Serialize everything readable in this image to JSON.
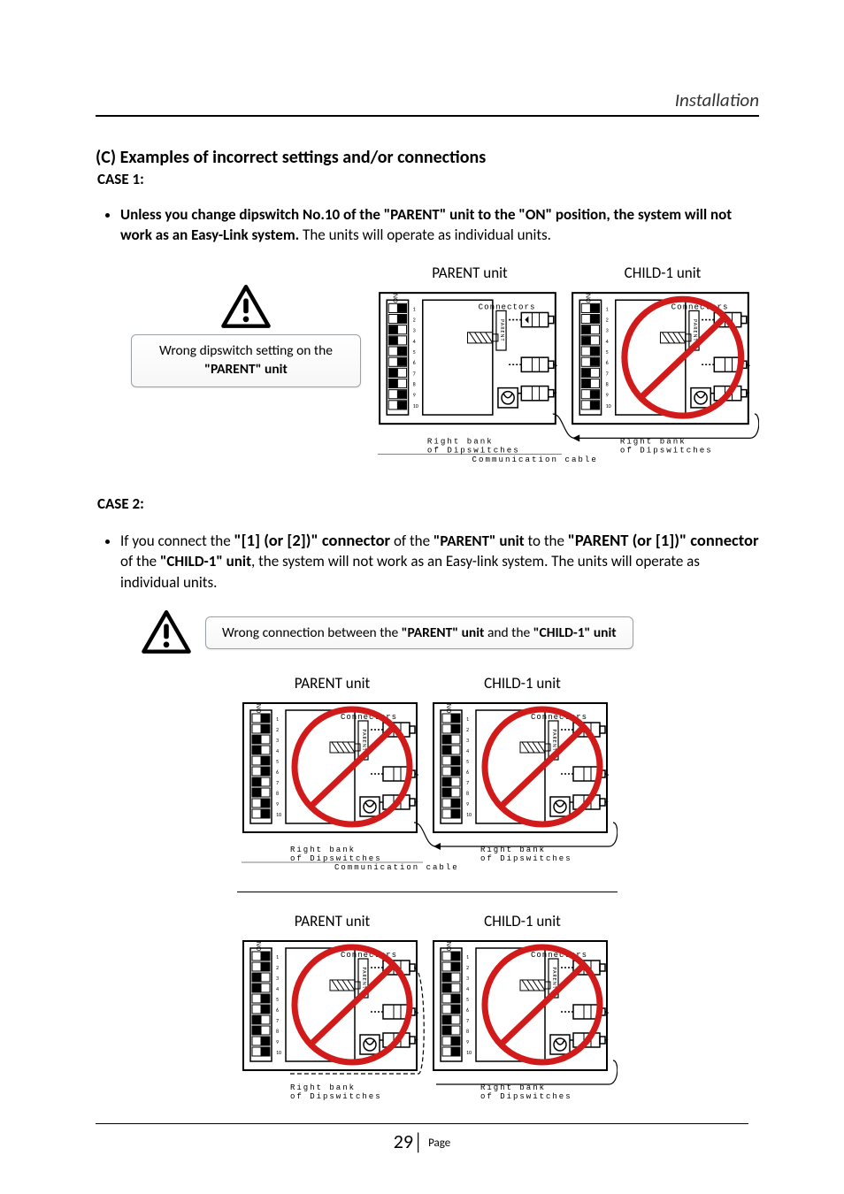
{
  "header": {
    "section": "Installation"
  },
  "heading": "(C) Examples of incorrect settings and/or connections",
  "case1": {
    "label": "CASE 1:",
    "bullet_bold": "Unless you change dipswitch No.10 of the \"PARENT\" unit to the \"ON\" position, the system will not work as an Easy-Link system.",
    "bullet_rest": " The units will operate as individual units.",
    "caution_box_pre": "Wrong dipswitch setting on the ",
    "caution_box_bold": "\"PARENT\" unit",
    "diagram": {
      "parent_title": "PARENT unit",
      "child_title": "CHILD-1 unit",
      "connectors": "Connectors",
      "right_bank": "Right bank",
      "of_dip": "of Dipswitches",
      "comm_cable": "Communication cable",
      "on_label": "ON",
      "port_label": "PARENT",
      "switch_numbers": [
        "1",
        "2",
        "3",
        "4",
        "5",
        "6",
        "7",
        "8",
        "9",
        "10"
      ],
      "crossed": [
        false,
        true
      ]
    }
  },
  "case2": {
    "label": "CASE 2:",
    "bullet_parts": [
      {
        "t": "If you connect the ",
        "b": false
      },
      {
        "t": "\"[1] (or [2])\" connector",
        "b": true,
        "big": true
      },
      {
        "t": " of the ",
        "b": false
      },
      {
        "t": "\"PARENT\" unit",
        "b": true
      },
      {
        "t": " to the ",
        "b": false
      },
      {
        "t": "\"PARENT (or [1])\" connector",
        "b": true,
        "big": true
      },
      {
        "t": " of the ",
        "b": false
      },
      {
        "t": "\"CHILD-1\" unit",
        "b": true
      },
      {
        "t": ", the system will not work as an Easy-link system. The units will operate as individual units.",
        "b": false
      }
    ],
    "caution_box_pre": "Wrong connection between the ",
    "caution_box_bold1": "\"PARENT\" unit",
    "caution_box_mid": " and the ",
    "caution_box_bold2": "\"CHILD-1\" unit",
    "diagram_a": {
      "parent_title": "PARENT unit",
      "child_title": "CHILD-1 unit",
      "connectors": "Connectors",
      "right_bank": "Right bank",
      "of_dip": "of Dipswitches",
      "comm_cable": "Communication cable",
      "on_label": "ON",
      "port_label": "PARENT",
      "switch_numbers": [
        "1",
        "2",
        "3",
        "4",
        "5",
        "6",
        "7",
        "8",
        "9",
        "10"
      ],
      "crossed": [
        true,
        true
      ]
    },
    "diagram_b": {
      "parent_title": "PARENT unit",
      "child_title": "CHILD-1 unit",
      "connectors": "Connectors",
      "right_bank": "Right bank",
      "of_dip": "of Dipswitches",
      "on_label": "ON",
      "port_label": "PARENT",
      "switch_numbers": [
        "1",
        "2",
        "3",
        "4",
        "5",
        "6",
        "7",
        "8",
        "9",
        "10"
      ],
      "crossed": [
        true,
        true
      ]
    }
  },
  "footer": {
    "page_num": "29",
    "page_word": "Page"
  },
  "colors": {
    "prohibit": "#d11a1a",
    "box_border": "#9aa0a8"
  }
}
